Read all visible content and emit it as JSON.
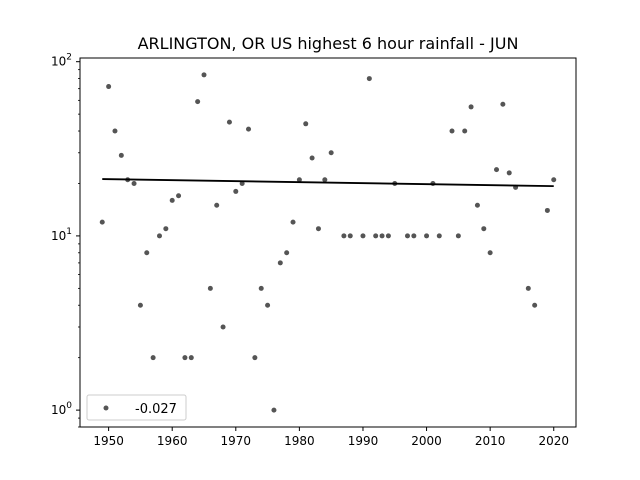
{
  "chart_data": {
    "type": "scatter",
    "title": "ARLINGTON, OR US highest 6 hour rainfall - JUN",
    "xlabel": "",
    "ylabel": "",
    "xlim": [
      1945.5,
      2023.5
    ],
    "ylim": [
      0.8,
      105
    ],
    "yscale": "log",
    "x_ticks": [
      1950,
      1960,
      1970,
      1980,
      1990,
      2000,
      2010,
      2020
    ],
    "y_ticks": [
      {
        "value": 1,
        "base": "10",
        "exp": "0"
      },
      {
        "value": 10,
        "base": "10",
        "exp": "1"
      },
      {
        "value": 100,
        "base": "10",
        "exp": "2"
      }
    ],
    "grid": false,
    "legend": {
      "placement": "lower-left",
      "entries": [
        "-0.027"
      ]
    },
    "colors": {
      "points": "#555555",
      "trend": "#000000"
    },
    "series": [
      {
        "name": "-0.027",
        "points": [
          [
            1949,
            12
          ],
          [
            1950,
            72
          ],
          [
            1951,
            40
          ],
          [
            1952,
            29
          ],
          [
            1953,
            21
          ],
          [
            1954,
            20
          ],
          [
            1955,
            4
          ],
          [
            1956,
            8
          ],
          [
            1957,
            2
          ],
          [
            1958,
            10
          ],
          [
            1959,
            11
          ],
          [
            1960,
            16
          ],
          [
            1961,
            17
          ],
          [
            1962,
            2
          ],
          [
            1963,
            2
          ],
          [
            1964,
            59
          ],
          [
            1965,
            84
          ],
          [
            1966,
            5
          ],
          [
            1967,
            15
          ],
          [
            1968,
            3
          ],
          [
            1969,
            45
          ],
          [
            1970,
            18
          ],
          [
            1971,
            20
          ],
          [
            1972,
            41
          ],
          [
            1973,
            2
          ],
          [
            1974,
            5
          ],
          [
            1975,
            4
          ],
          [
            1976,
            1
          ],
          [
            1977,
            7
          ],
          [
            1978,
            8
          ],
          [
            1979,
            12
          ],
          [
            1980,
            21
          ],
          [
            1981,
            44
          ],
          [
            1982,
            28
          ],
          [
            1983,
            11
          ],
          [
            1984,
            21
          ],
          [
            1985,
            30
          ],
          [
            1987,
            10
          ],
          [
            1988,
            10
          ],
          [
            1990,
            10
          ],
          [
            1991,
            80
          ],
          [
            1992,
            10
          ],
          [
            1993,
            10
          ],
          [
            1994,
            10
          ],
          [
            1995,
            20
          ],
          [
            1997,
            10
          ],
          [
            1998,
            10
          ],
          [
            2000,
            10
          ],
          [
            2001,
            20
          ],
          [
            2002,
            10
          ],
          [
            2004,
            40
          ],
          [
            2005,
            10
          ],
          [
            2006,
            40
          ],
          [
            2007,
            55
          ],
          [
            2008,
            15
          ],
          [
            2009,
            11
          ],
          [
            2010,
            8
          ],
          [
            2011,
            24
          ],
          [
            2012,
            57
          ],
          [
            2013,
            23
          ],
          [
            2014,
            19
          ],
          [
            2016,
            5
          ],
          [
            2017,
            4
          ],
          [
            2019,
            14
          ],
          [
            2020,
            21
          ]
        ]
      }
    ],
    "trend": {
      "x": [
        1949,
        2020
      ],
      "y": [
        21.2,
        19.3
      ]
    }
  }
}
